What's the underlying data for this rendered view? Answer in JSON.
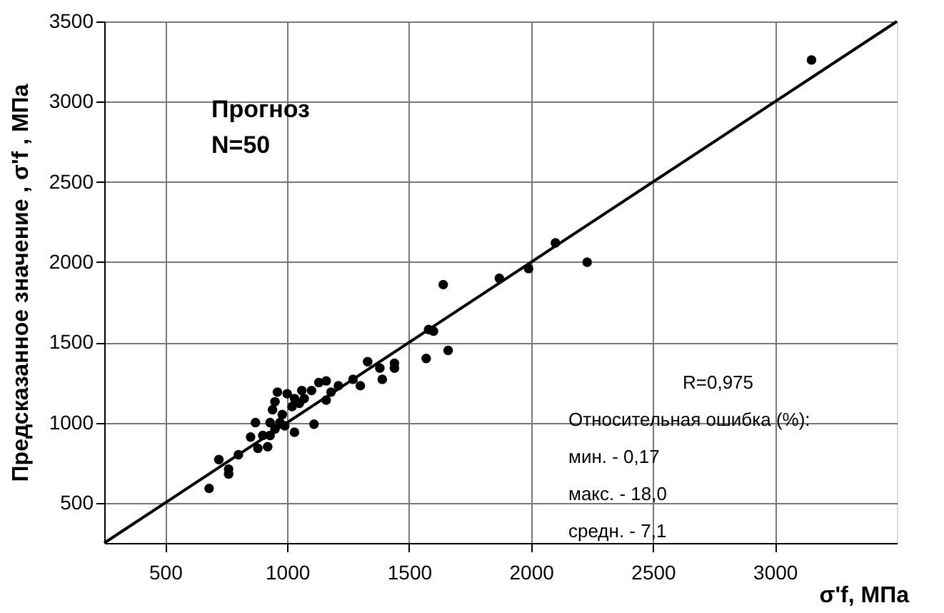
{
  "chart_data": {
    "type": "scatter",
    "xlabel": "σ'f, МПа",
    "ylabel": "Предсказанное значение ,   σ'f , МПа",
    "annotations": [
      "Прогноз",
      "N=50",
      "R=0,975",
      "Относительная ошибка (%):",
      "мин.    -  0,17",
      "макс.  -  18,0",
      "средн. -  7,1"
    ],
    "series": [
      {
        "type": "scatter",
        "color": "#000000",
        "marker": "circle",
        "x": [
          3150,
          2230,
          2100,
          1990,
          1870,
          1640,
          1660,
          1600,
          1580,
          1570,
          1440,
          1440,
          1390,
          1380,
          1330,
          1300,
          1270,
          1210,
          1180,
          1160,
          1160,
          1130,
          1110,
          1100,
          1060,
          1050,
          1030,
          1000,
          980,
          960,
          950,
          940,
          930,
          950,
          930,
          920,
          900,
          880,
          870,
          850,
          800,
          760,
          760,
          720,
          680,
          1030,
          970,
          1020,
          1070,
          990
        ],
        "values": [
          3260,
          2000,
          2120,
          1960,
          1900,
          1860,
          1450,
          1570,
          1580,
          1400,
          1340,
          1370,
          1270,
          1340,
          1380,
          1230,
          1270,
          1230,
          1190,
          1140,
          1260,
          1250,
          990,
          1200,
          1200,
          1120,
          1150,
          1180,
          1050,
          1190,
          1130,
          1080,
          1000,
          960,
          920,
          850,
          920,
          840,
          1000,
          910,
          800,
          710,
          680,
          770,
          590,
          940,
          1000,
          1100,
          1150,
          980
        ]
      },
      {
        "type": "line",
        "color": "#000000",
        "x": [
          250,
          3500
        ],
        "values": [
          250,
          3500
        ]
      }
    ],
    "xlim": [
      250,
      3500
    ],
    "ylim": [
      250,
      3500
    ],
    "xticks": [
      500,
      1000,
      1500,
      2000,
      2500,
      3000
    ],
    "yticks": [
      500,
      1000,
      1500,
      2000,
      2500,
      3000,
      3500
    ],
    "grid": true,
    "line_style": "solid"
  }
}
